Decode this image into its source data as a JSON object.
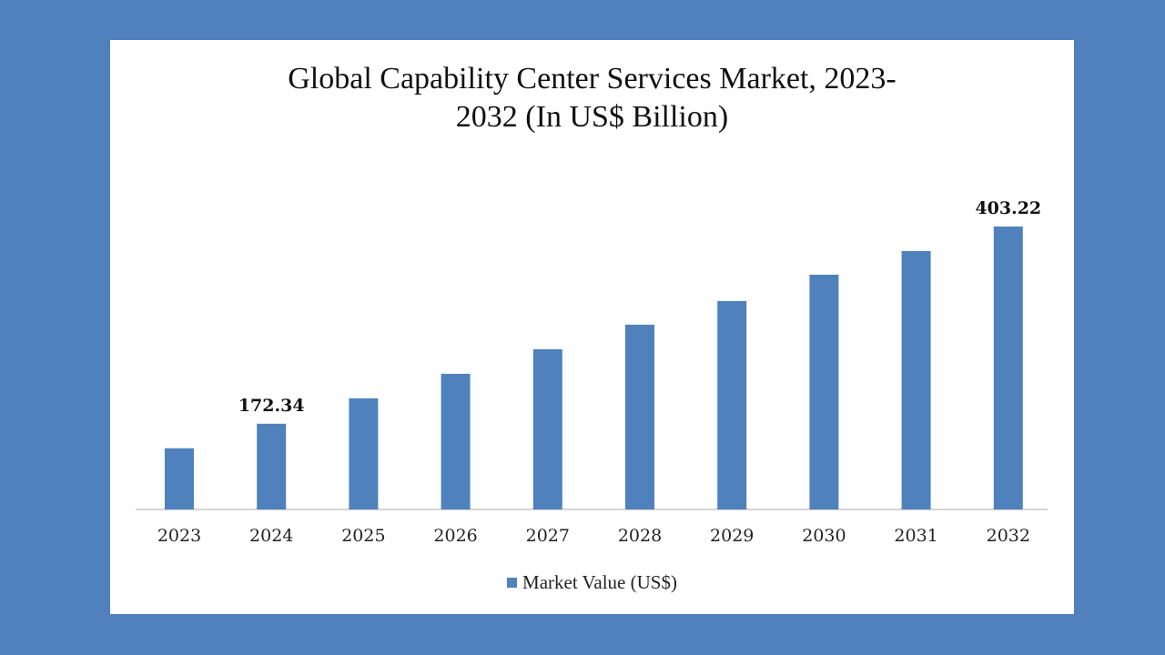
{
  "chart_data": {
    "type": "bar",
    "title_lines": [
      "Global Capability Center Services Market, 2023-",
      "2032 (In US$ Billion)"
    ],
    "categories": [
      "2023",
      "2024",
      "2025",
      "2026",
      "2027",
      "2028",
      "2029",
      "2030",
      "2031",
      "2032"
    ],
    "series": [
      {
        "name": "Market Value (US$)",
        "color": "#4f81bd",
        "values": [
          143.6,
          172.34,
          202.1,
          230.8,
          259.6,
          288.3,
          316.0,
          346.8,
          374.5,
          403.22
        ]
      }
    ],
    "data_labels": [
      {
        "category": "2024",
        "text": "172.34"
      },
      {
        "category": "2032",
        "text": "403.22"
      }
    ],
    "xlabel": "",
    "ylabel": "",
    "ylim": [
      72,
      403.22
    ],
    "y_axis_visible": false,
    "grid": false,
    "legend": "bottom",
    "background": "#5081be"
  }
}
